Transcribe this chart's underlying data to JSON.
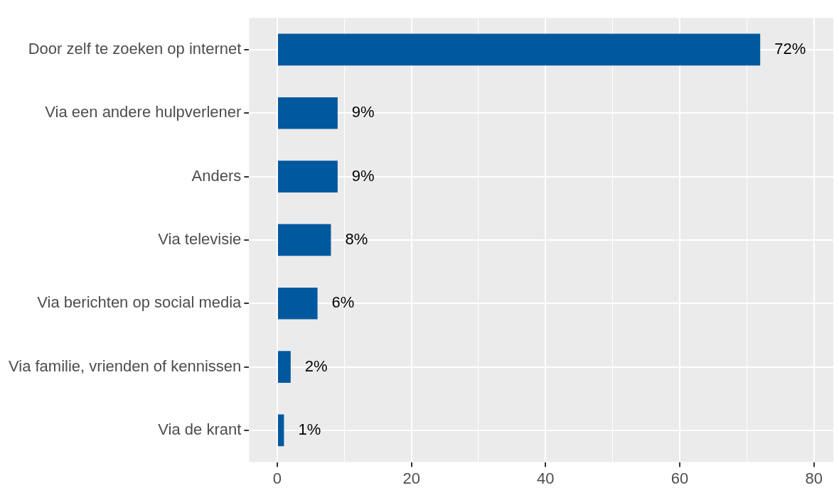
{
  "chart_data": {
    "type": "bar",
    "orientation": "horizontal",
    "categories": [
      "Door zelf te zoeken op internet",
      "Via een andere hulpverlener",
      "Anders",
      "Via televisie",
      "Via berichten op social media",
      "Via familie, vrienden of kennissen",
      "Via de krant"
    ],
    "values": [
      72,
      9,
      9,
      8,
      6,
      2,
      1
    ],
    "value_labels": [
      "72%",
      "9%",
      "9%",
      "8%",
      "6%",
      "2%",
      "1%"
    ],
    "color": "#00589f",
    "xlim": [
      -4.2,
      82.9
    ],
    "xticks": [
      0,
      {
        "value": 10,
        "label": null
      },
      20,
      {
        "value": 30,
        "label": null
      },
      40,
      {
        "value": 50,
        "label": null
      },
      60,
      {
        "value": 70,
        "label": null
      },
      80
    ],
    "grid": true,
    "legend": false
  }
}
